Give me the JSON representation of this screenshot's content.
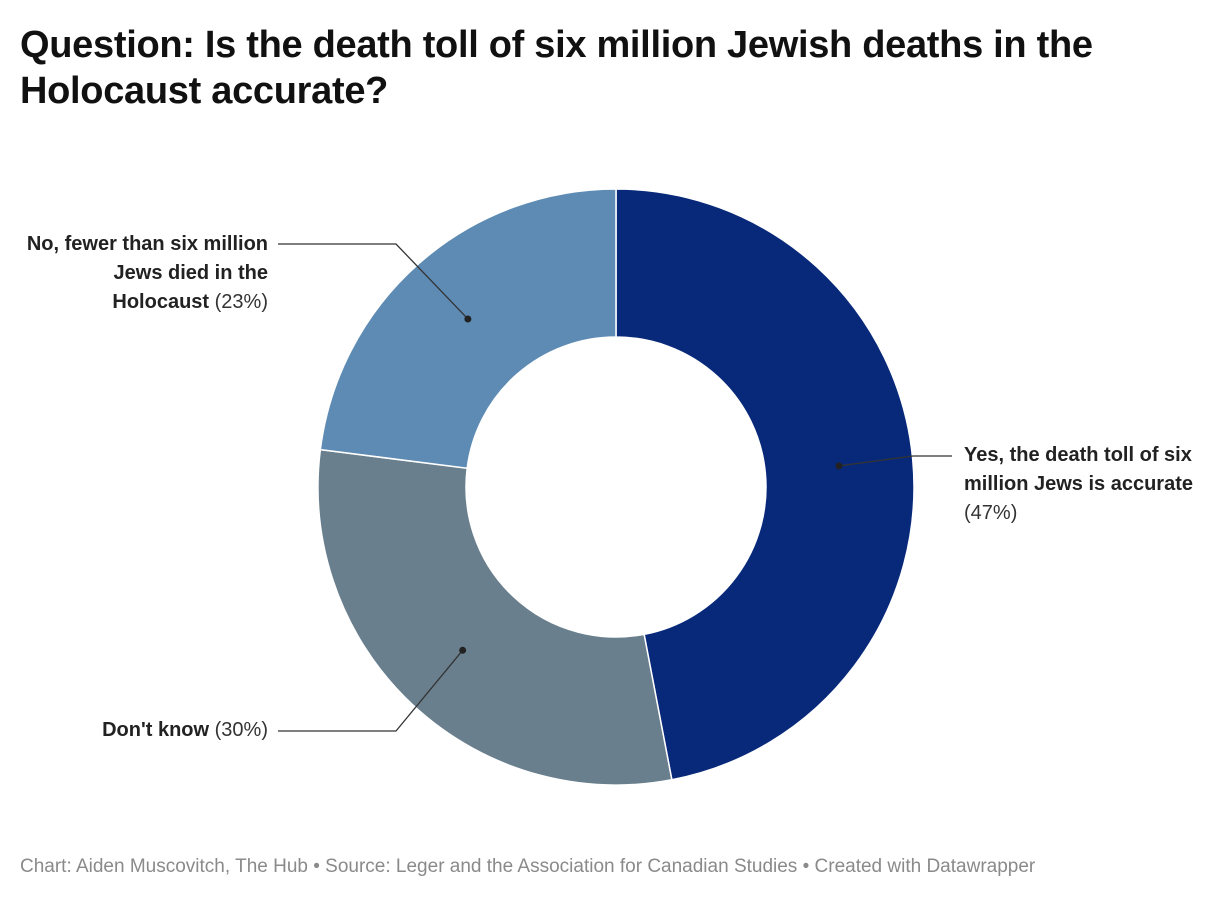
{
  "title": "Question: Is the death toll of six million Jewish deaths in the Holocaust accurate?",
  "chart_data": {
    "type": "pie",
    "donut": true,
    "slices": [
      {
        "name": "Yes, the death toll of six million Jews is accurate",
        "value": 47,
        "pct_label": "(47%)",
        "color": "#08297a"
      },
      {
        "name": "Don't know",
        "value": 30,
        "pct_label": "(30%)",
        "color": "#697f8d"
      },
      {
        "name": "No, fewer than six million Jews died in the Holocaust",
        "value": 23,
        "pct_label": "(23%)",
        "color": "#5d8bb3"
      }
    ]
  },
  "footer": "Chart: Aiden Muscovitch, The Hub • Source: Leger and the Association for Canadian Studies • Created with Datawrapper"
}
